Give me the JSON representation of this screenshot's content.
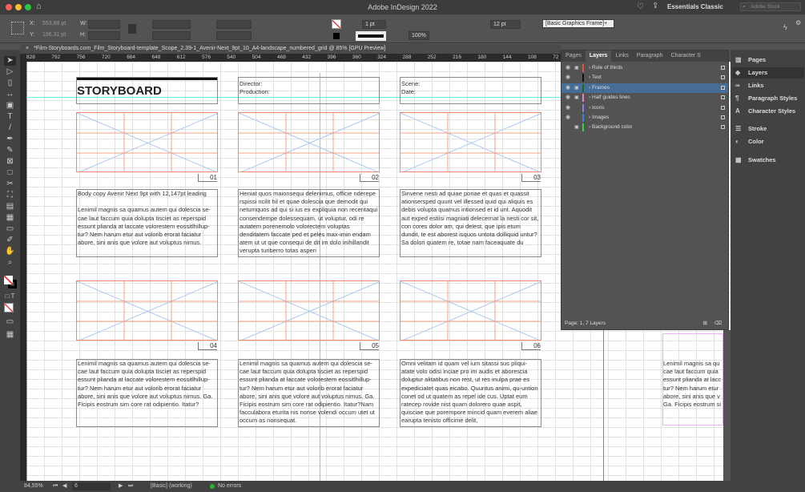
{
  "app": {
    "title": "Adobe InDesign 2022",
    "workspace": "Essentials Classic",
    "search_placeholder": "Adobe Stock"
  },
  "control": {
    "x_label": "X:",
    "x_value": "553,89 pt",
    "y_label": "Y:",
    "y_value": "196,31 pt",
    "w_label": "W:",
    "h_label": "H:",
    "stroke_weight": "1 pt",
    "opacity": "100%",
    "gap": "12 pt",
    "object_style": "[Basic Graphics Frame]+"
  },
  "document": {
    "tab_title": "*Film-Storyboards.com_Film_Storyboard-template_Scope_2.39-1_Avenir-Next_9pt_10_A4-landscape_numbered_grid @ 85% [GPU Preview]"
  },
  "ruler": {
    "ticks": [
      "828",
      "792",
      "756",
      "720",
      "684",
      "648",
      "612",
      "576",
      "540",
      "504",
      "468",
      "432",
      "396",
      "360",
      "324",
      "288",
      "252",
      "216",
      "180",
      "144",
      "108",
      "72"
    ]
  },
  "storyboard": {
    "title": "STORYBOARD",
    "director_label": "Director:",
    "production_label": "Production:",
    "scene_label": "Scene:",
    "date_label": "Date:",
    "panels": [
      {
        "number": "01",
        "text": "Body copy Avenir Next 9pt with 12,147pt leading\n\nLenimil magnis sa quamus autem qui dolescia se-cae laut faccum quia dolupta tisciet as reperspid essunt plianda at laccate volorestem eossitlhillup-tur? Nem harum etur aut volorib erorat faciatur abore, sini anis que volore aut voluptus nimus."
      },
      {
        "number": "02",
        "text": "Heniat quos maionsequi delenimus, officie nderepe rspissi ncilit hil et quae dolescia que demodit qui netumquos ad qui si ius ex expliquia non receritaqui consendempe dolessequam, ut voluptur, odi re autatem porenemolo volorectem voluptas denditatem faccate ped et peles max-imin endam atem ut ut que consequi de dit im dolo inihillandit verupta turiberro totas asperi"
      },
      {
        "number": "03",
        "text": "Sinvene nesti ad quiae poriae et quas et quassit ationsersped quunt vel illessed quid qui aliquis es debis volupta quamus intionsed et id unt. Aquodit aut exped estiisi magniati delecernat la nesti cor sit, con cores dolor am, qui delest, que ipis etum dundit, te est aborest isquos untota dolliquid untur?\nSa dolori quatem re, totae nam faceaquate du"
      },
      {
        "number": "04",
        "text": "Lenimil magnis sa quamus autem qui dolescia se-cae laut faccum quia dolupta tisciet as reperspid essunt plianda at laccate volorestem eossitlhillup-tur? Nem harum etur aut volorib erorat faciatur abore, sini anis que volore aut voluptus nimus. Ga. Ficipis eostrum sim core rat odipientio. Itatur?"
      },
      {
        "number": "05",
        "text": "Lenimil magnis sa quamus autem qui dolescia se-cae laut faccum quia dolupta tisciet as reperspid essunt plianda at laccate volorestem eossitlhillup-tur? Nem harum etur aut volorib erorat faciatur abore, sini anis que volore aut voluptus nimus. Ga. Ficipis eostrum sim core rat odipientio. Itatur?Nam facculabora eturita nis nonse volendi occum utet ut occum as nonsequat."
      },
      {
        "number": "06",
        "text": "Omni velitam id quam vel ium sitassi sus pliqui-atate volo odisi inciae pro im audis et aborescia doluptur alitatibus non rest, ut res inulpa prae es expediciatet quas eicabo. Quuntus animi, qu-untion conet od ut quatem as repel ide cus. Uptat eum ratecep rovide nist quam dolorero quae aspit, quisciae que porempore mincid quam everem aliae earupta tenisto officime delit,"
      }
    ],
    "next_page_text": "Lenimil magnis sa qu\ncae laut faccum quia\nessunt plianda at lacc\ntur? Nem harum etur\nabore, sini anis que v\nGa. Ficipis eostrum si"
  },
  "layers_panel": {
    "tabs": [
      "Pages",
      "Layers",
      "Links",
      "Paragraph",
      "Character S"
    ],
    "active_tab": "Layers",
    "layers": [
      {
        "name": "Rule of thirds",
        "visible": true,
        "locked": true,
        "color": "#e8504a"
      },
      {
        "name": "Text",
        "visible": true,
        "locked": false,
        "color": "#111111"
      },
      {
        "name": "Frames",
        "visible": true,
        "locked": true,
        "color": "#1e6b1e",
        "selected": true
      },
      {
        "name": "Half guides lines",
        "visible": true,
        "locked": true,
        "color": "#e87ec8"
      },
      {
        "name": "Icons",
        "visible": true,
        "locked": false,
        "color": "#8a7ee0"
      },
      {
        "name": "Images",
        "visible": true,
        "locked": false,
        "color": "#3a7ee0"
      },
      {
        "name": "Background color",
        "visible": false,
        "locked": true,
        "color": "#3ad43a"
      }
    ],
    "footer": "Page: 1, 7 Layers"
  },
  "dock": {
    "items": [
      {
        "label": "Pages",
        "icon": "pages-icon"
      },
      {
        "label": "Layers",
        "icon": "layers-icon",
        "active": true
      },
      {
        "label": "Links",
        "icon": "links-icon"
      },
      {
        "label": "Paragraph Styles",
        "icon": "paragraph-styles-icon"
      },
      {
        "label": "Character Styles",
        "icon": "character-styles-icon"
      },
      {
        "label": "Stroke",
        "icon": "stroke-icon"
      },
      {
        "label": "Color",
        "icon": "color-icon"
      },
      {
        "label": "Swatches",
        "icon": "swatches-icon"
      }
    ]
  },
  "status": {
    "zoom": "84,55%",
    "page": "6",
    "preflight_profile": "[Basic] (working)",
    "errors": "No errors"
  }
}
